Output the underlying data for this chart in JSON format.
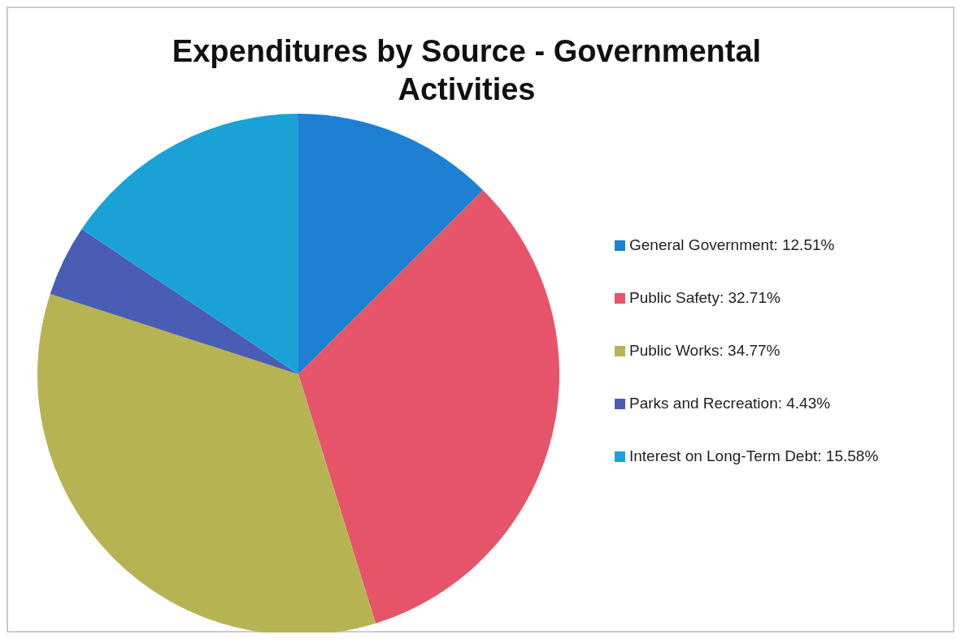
{
  "chart_data": {
    "type": "pie",
    "title": "Expenditures by Source - Governmental Activities",
    "categories": [
      "General Government: 12.51%",
      "Public Safety: 32.71%",
      "Public Works: 34.77%",
      "Parks and Recreation: 4.43%",
      "Interest on Long-Term Debt: 15.58%"
    ],
    "values": [
      12.51,
      32.71,
      34.77,
      4.43,
      15.58
    ],
    "colors": [
      "#1e80d2",
      "#e65469",
      "#b6b452",
      "#4a5db4",
      "#1aa2d6"
    ],
    "legend": "right"
  }
}
